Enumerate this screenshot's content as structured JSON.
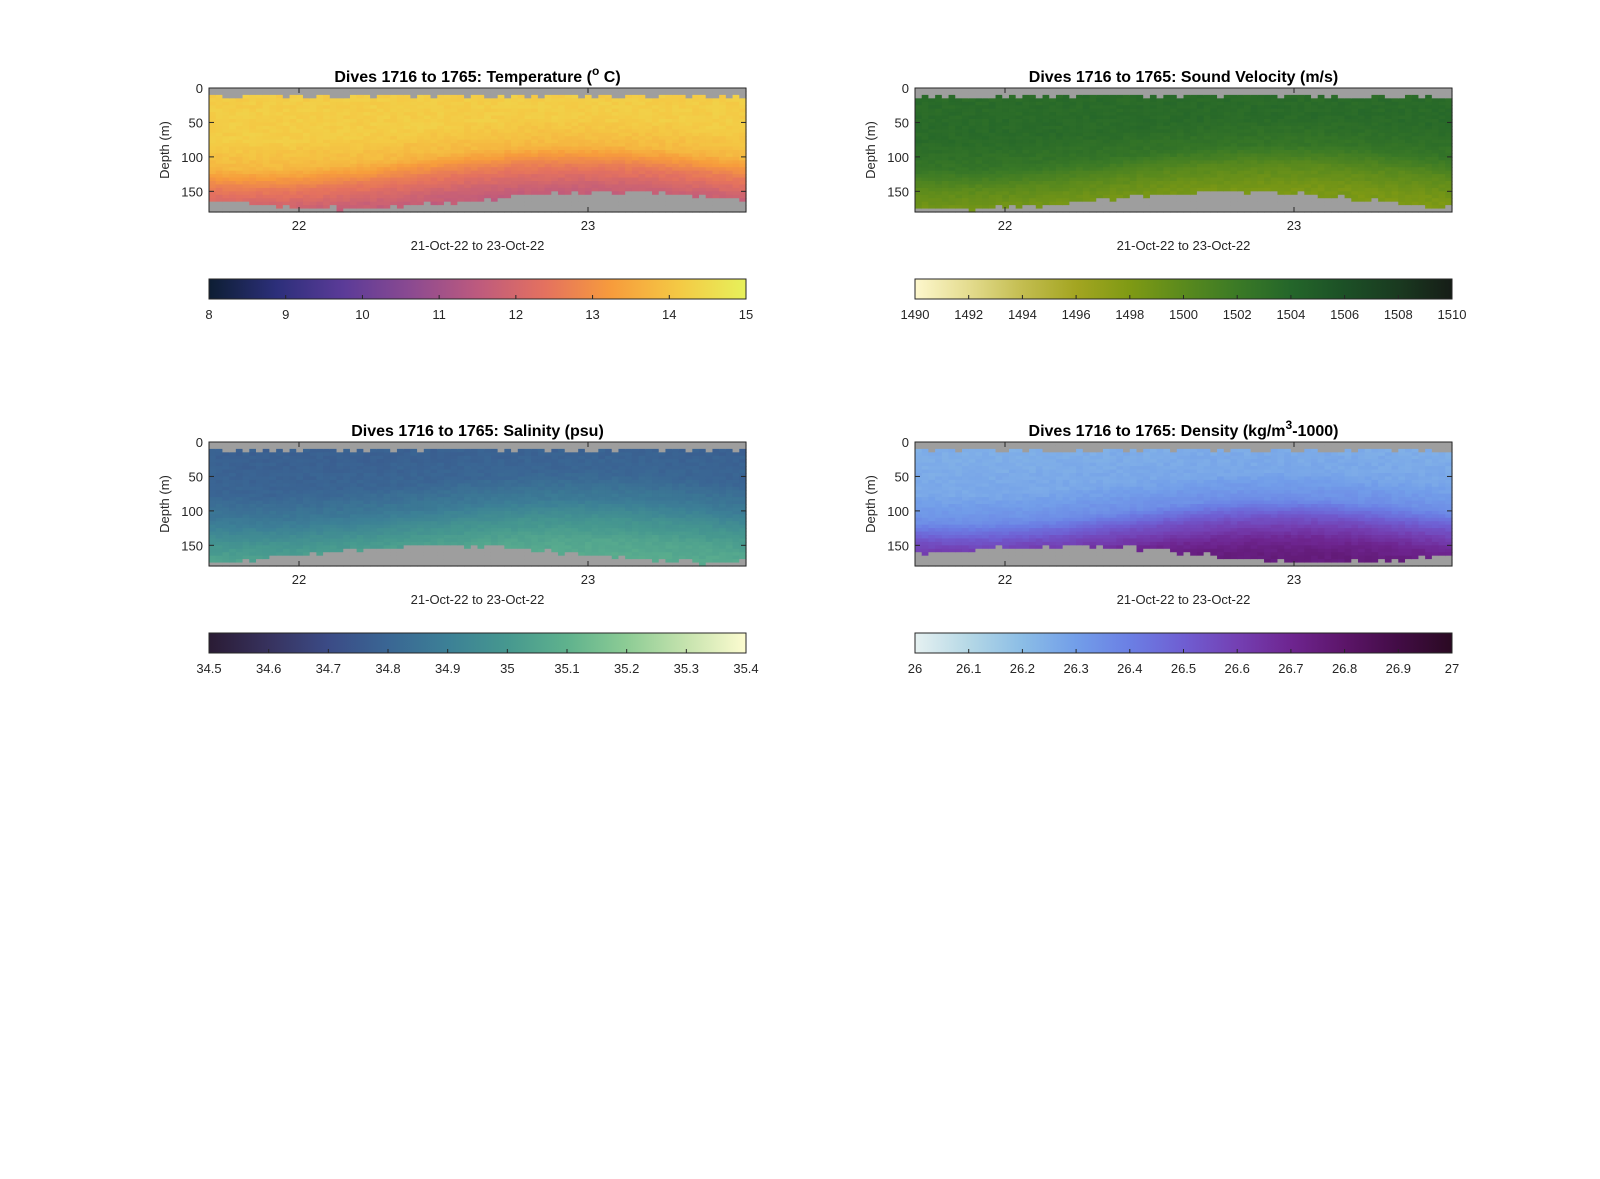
{
  "figure": {
    "xlabel": "21-Oct-22 to 23-Oct-22",
    "ylabel": "Depth (m)",
    "x_ticks": [
      "22",
      "23"
    ]
  },
  "chart_data": [
    {
      "type": "heatmap",
      "variable": "temperature",
      "title_main": "Dives 1716 to 1765: Temperature (",
      "title_sup": "o",
      "title_end": " C)",
      "xlabel": "21-Oct-22 to 23-Oct-22",
      "ylabel": "Depth (m)",
      "x_ticks": [
        "22",
        "23"
      ],
      "x_range": [
        "2022-10-21T16:30",
        "2022-10-23T19:30"
      ],
      "y_ticks": [
        0,
        50,
        100,
        150
      ],
      "ylim": [
        0,
        180
      ],
      "y_reversed": true,
      "colorbar": {
        "min": 8,
        "max": 15,
        "ticks": [
          "8",
          "9",
          "10",
          "11",
          "12",
          "13",
          "14",
          "15"
        ],
        "colors": [
          "#0d1e33",
          "#2c2f7a",
          "#5b3b98",
          "#8b4a91",
          "#bd5a7e",
          "#e4715f",
          "#f79c3c",
          "#f4c944",
          "#e7f15b"
        ]
      },
      "profile": {
        "depth_m": [
          10,
          60,
          100,
          130,
          160,
          180
        ],
        "value_deg_c": [
          14.2,
          14.2,
          13.8,
          12.6,
          11.8,
          11.5
        ]
      },
      "missing_color": "#9e9e9e"
    },
    {
      "type": "heatmap",
      "variable": "sound_velocity",
      "title_main": "Dives 1716 to 1765: Sound Velocity (m/s)",
      "title_sup": "",
      "title_end": "",
      "xlabel": "21-Oct-22 to 23-Oct-22",
      "ylabel": "Depth (m)",
      "x_ticks": [
        "22",
        "23"
      ],
      "x_range": [
        "2022-10-21T16:30",
        "2022-10-23T19:30"
      ],
      "y_ticks": [
        0,
        50,
        100,
        150
      ],
      "ylim": [
        0,
        180
      ],
      "y_reversed": true,
      "colorbar": {
        "min": 1490,
        "max": 1510,
        "ticks": [
          "1490",
          "1492",
          "1494",
          "1496",
          "1498",
          "1500",
          "1502",
          "1504",
          "1506",
          "1508",
          "1510"
        ],
        "colors": [
          "#fdf7cd",
          "#e4dc8f",
          "#c3bd50",
          "#a3a521",
          "#7f9a14",
          "#5a8a1d",
          "#3b7a26",
          "#24662a",
          "#1c5026",
          "#1a3a20",
          "#161d17"
        ]
      },
      "profile": {
        "depth_m": [
          10,
          60,
          100,
          130,
          160,
          180
        ],
        "value_m_s": [
          1503.5,
          1503.5,
          1502.5,
          1500,
          1498.5,
          1498
        ]
      },
      "missing_color": "#9e9e9e"
    },
    {
      "type": "heatmap",
      "variable": "salinity",
      "title_main": "Dives 1716 to 1765: Salinity (psu)",
      "title_sup": "",
      "title_end": "",
      "xlabel": "21-Oct-22 to 23-Oct-22",
      "ylabel": "Depth (m)",
      "x_ticks": [
        "22",
        "23"
      ],
      "x_range": [
        "2022-10-21T16:30",
        "2022-10-23T19:30"
      ],
      "y_ticks": [
        0,
        50,
        100,
        150
      ],
      "ylim": [
        0,
        180
      ],
      "y_reversed": true,
      "colorbar": {
        "min": 34.5,
        "max": 35.4,
        "ticks": [
          "34.5",
          "34.6",
          "34.7",
          "34.8",
          "34.9",
          "35",
          "35.1",
          "35.2",
          "35.3",
          "35.4"
        ],
        "colors": [
          "#2a1b34",
          "#37325e",
          "#3b4b86",
          "#3a6694",
          "#3c8096",
          "#46988f",
          "#5fb28d",
          "#8dcc95",
          "#c6e3ae",
          "#fdfcd0"
        ]
      },
      "profile": {
        "depth_m": [
          10,
          60,
          100,
          130,
          160,
          180
        ],
        "value_psu": [
          34.78,
          34.8,
          34.88,
          34.98,
          35.05,
          35.07
        ]
      },
      "missing_color": "#9e9e9e"
    },
    {
      "type": "heatmap",
      "variable": "density",
      "title_main": "Dives 1716 to 1765: Density (kg/m",
      "title_sup": "3",
      "title_end": "-1000)",
      "xlabel": "21-Oct-22 to 23-Oct-22",
      "ylabel": "Depth (m)",
      "x_ticks": [
        "22",
        "23"
      ],
      "x_range": [
        "2022-10-21T16:30",
        "2022-10-23T19:30"
      ],
      "y_ticks": [
        0,
        50,
        100,
        150
      ],
      "ylim": [
        0,
        180
      ],
      "y_reversed": true,
      "colorbar": {
        "min": 26,
        "max": 27,
        "ticks": [
          "26",
          "26.1",
          "26.2",
          "26.3",
          "26.4",
          "26.5",
          "26.6",
          "26.7",
          "26.8",
          "26.9",
          "27"
        ],
        "colors": [
          "#e6f1f1",
          "#b5d8e6",
          "#8bbde6",
          "#729ee9",
          "#6b7fe4",
          "#6f5ed2",
          "#7440b3",
          "#6e2590",
          "#5c1569",
          "#420c45",
          "#2a0a22"
        ]
      },
      "profile": {
        "depth_m": [
          10,
          60,
          100,
          130,
          160,
          180
        ],
        "value_kg_m3_minus_1000": [
          26.25,
          26.27,
          26.35,
          26.55,
          26.7,
          26.75
        ]
      },
      "missing_color": "#9e9e9e"
    }
  ]
}
